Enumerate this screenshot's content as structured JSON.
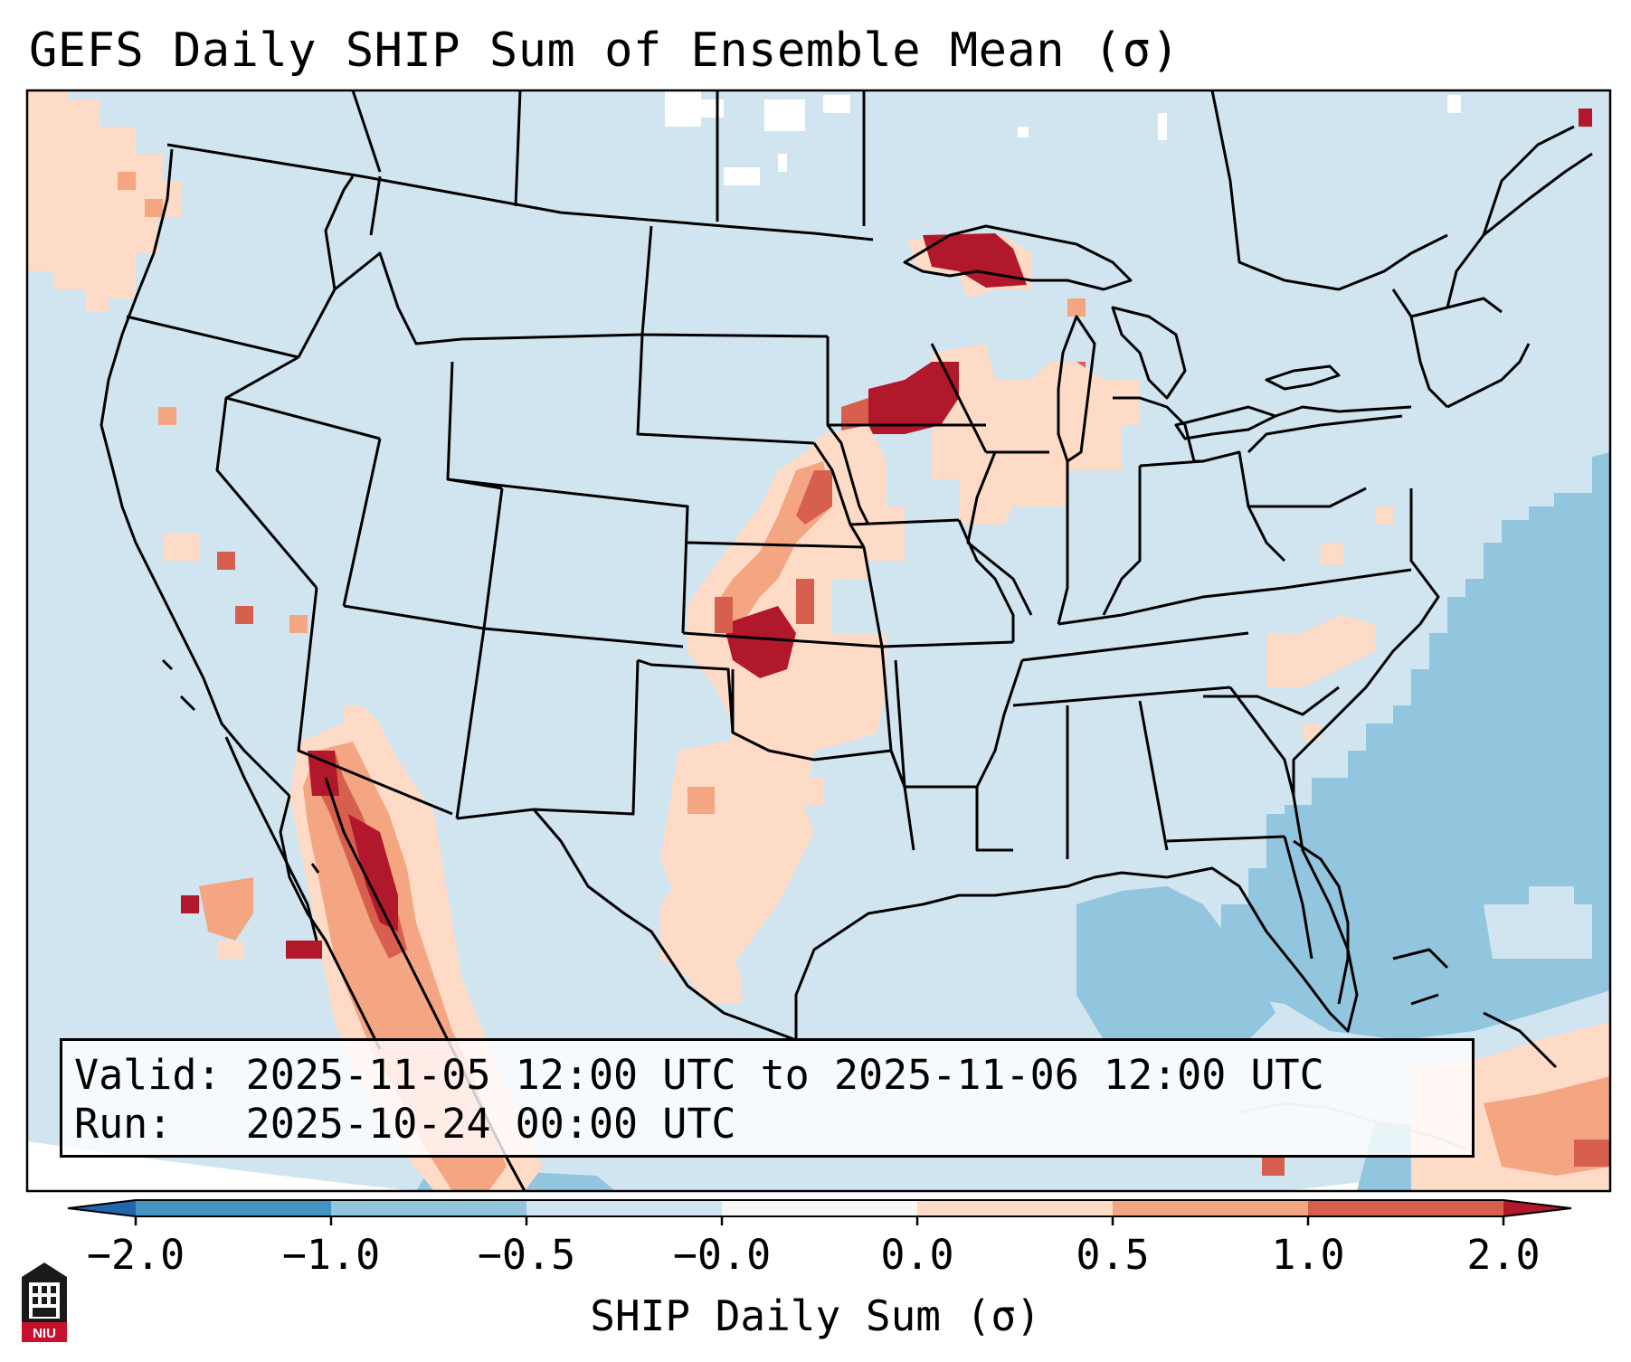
{
  "title": "GEFS Daily SHIP Sum of Ensemble Mean (σ)",
  "valid_label": "Valid:",
  "valid_range": "2025-11-05 12:00 UTC to 2025-11-06 12:00 UTC",
  "run_label": "Run:",
  "run_time": "2025-10-24 00:00 UTC",
  "colorbar": {
    "label": "SHIP Daily Sum (σ)",
    "ticks": [
      "−2.0",
      "−1.0",
      "−0.5",
      "−0.0",
      "0.0",
      "0.5",
      "1.0",
      "2.0"
    ],
    "bins": [
      {
        "from": -2.0,
        "to": -1.0,
        "color": "#4393c3"
      },
      {
        "from": -1.0,
        "to": -0.5,
        "color": "#92c5de"
      },
      {
        "from": -0.5,
        "to": -0.0,
        "color": "#d1e5f0"
      },
      {
        "from": -0.0,
        "to": 0.0,
        "color": "#f7f7f7"
      },
      {
        "from": 0.0,
        "to": 0.5,
        "color": "#fddbc7"
      },
      {
        "from": 0.5,
        "to": 1.0,
        "color": "#f4a582"
      },
      {
        "from": 1.0,
        "to": 2.0,
        "color": "#d6604d"
      }
    ],
    "under_color": "#2166ac",
    "over_color": "#b2182b",
    "extend": "both"
  },
  "colors": {
    "background_anomaly": "#d1e5f0",
    "ocean_negative": "#92c5de",
    "missing": "#ffffff",
    "weak_positive": "#fddbc7",
    "moderate_positive": "#f4a582",
    "strong_positive": "#d6604d",
    "extreme_positive": "#b2182b"
  },
  "logo": {
    "icon": "niu-tower-logo-icon",
    "text": "NIU"
  }
}
